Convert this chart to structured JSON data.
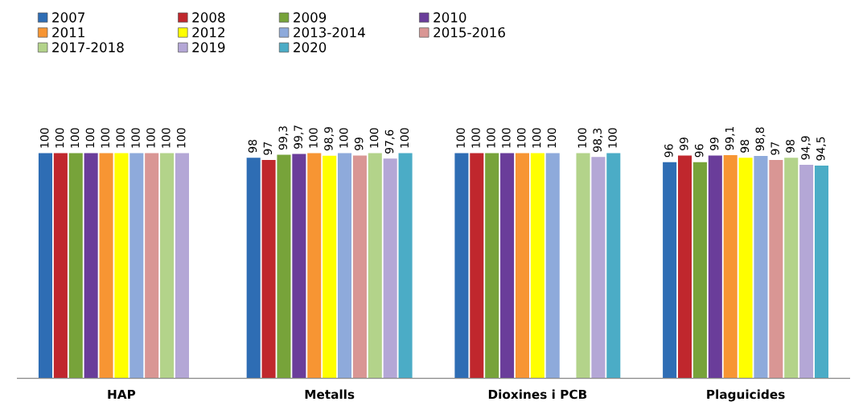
{
  "chart_data": {
    "type": "bar",
    "categories": [
      "HAP",
      "Metalls",
      "Dioxines i PCB",
      "Plaguicides"
    ],
    "series": [
      {
        "name": "2007",
        "color": "#2e6db4",
        "values": [
          100,
          98,
          100,
          96
        ],
        "value_labels": [
          "100",
          "98",
          "100",
          "96"
        ]
      },
      {
        "name": "2008",
        "color": "#c0272d",
        "values": [
          100,
          97,
          100,
          99
        ],
        "value_labels": [
          "100",
          "97",
          "100",
          "99"
        ]
      },
      {
        "name": "2009",
        "color": "#77a33a",
        "values": [
          100,
          99.3,
          100,
          96
        ],
        "value_labels": [
          "100",
          "99,3",
          "100",
          "96"
        ]
      },
      {
        "name": "2010",
        "color": "#6a3d9a",
        "values": [
          100,
          99.7,
          100,
          99
        ],
        "value_labels": [
          "100",
          "99,7",
          "100",
          "99"
        ]
      },
      {
        "name": "2011",
        "color": "#f79533",
        "values": [
          100,
          100,
          100,
          99.1
        ],
        "value_labels": [
          "100",
          "100",
          "100",
          "99,1"
        ]
      },
      {
        "name": "2012",
        "color": "#ffff00",
        "values": [
          100,
          98.9,
          100,
          98
        ],
        "value_labels": [
          "100",
          "98,9",
          "100",
          "98"
        ]
      },
      {
        "name": "2013-2014",
        "color": "#8eaadb",
        "values": [
          100,
          100,
          100,
          98.8
        ],
        "value_labels": [
          "100",
          "100",
          "100",
          "98,8"
        ]
      },
      {
        "name": "2015-2016",
        "color": "#d99694",
        "values": [
          100,
          99,
          null,
          97
        ],
        "value_labels": [
          "100",
          "99",
          null,
          "97"
        ]
      },
      {
        "name": "2017-2018",
        "color": "#b3d38a",
        "values": [
          100,
          100,
          100,
          98
        ],
        "value_labels": [
          "100",
          "100",
          "100",
          "98"
        ]
      },
      {
        "name": "2019",
        "color": "#b4a7d6",
        "values": [
          100,
          97.6,
          98.3,
          94.9
        ],
        "value_labels": [
          "100",
          "97,6",
          "98,3",
          "94,9"
        ]
      },
      {
        "name": "2020",
        "color": "#4bacc6",
        "values": [
          null,
          100,
          100,
          94.5
        ],
        "value_labels": [
          null,
          "100",
          "100",
          "94,5"
        ]
      }
    ],
    "legend": "top left",
    "grid": false
  }
}
